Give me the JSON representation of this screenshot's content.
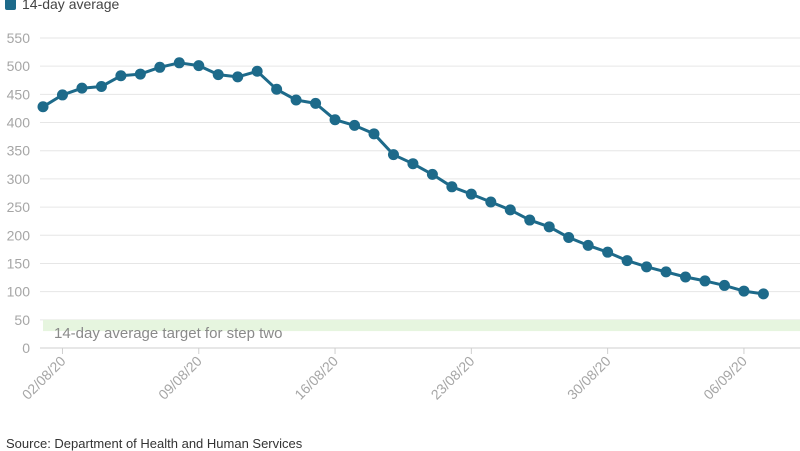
{
  "chart_data": {
    "type": "line",
    "legend": {
      "label": "14-day average",
      "placement": "top-left"
    },
    "colors": {
      "series": "#1d6a8a",
      "band": "#e6f5df",
      "grid": "#e6e6e6",
      "tick": "#a6a6a6"
    },
    "ylim": [
      0,
      550
    ],
    "yticks": [
      0,
      50,
      100,
      150,
      200,
      250,
      300,
      350,
      400,
      450,
      500,
      550
    ],
    "xticks": [
      "02/08/20",
      "09/08/20",
      "16/08/20",
      "23/08/20",
      "30/08/20",
      "06/09/20"
    ],
    "grid": true,
    "target_band": {
      "from": 30,
      "to": 50,
      "label": "14-day average target for step two"
    },
    "series": [
      {
        "name": "14-day average",
        "x": [
          "01/08/20",
          "02/08/20",
          "03/08/20",
          "04/08/20",
          "05/08/20",
          "06/08/20",
          "07/08/20",
          "08/08/20",
          "09/08/20",
          "10/08/20",
          "11/08/20",
          "12/08/20",
          "13/08/20",
          "14/08/20",
          "15/08/20",
          "16/08/20",
          "17/08/20",
          "18/08/20",
          "19/08/20",
          "20/08/20",
          "21/08/20",
          "22/08/20",
          "23/08/20",
          "24/08/20",
          "25/08/20",
          "26/08/20",
          "27/08/20",
          "28/08/20",
          "29/08/20",
          "30/08/20",
          "31/08/20",
          "01/09/20",
          "02/09/20",
          "03/09/20",
          "04/09/20",
          "05/09/20",
          "06/09/20",
          "07/09/20"
        ],
        "values": [
          428,
          449,
          461,
          464,
          483,
          486,
          498,
          506,
          501,
          485,
          481,
          491,
          459,
          440,
          434,
          405,
          395,
          380,
          343,
          327,
          308,
          286,
          273,
          259,
          245,
          227,
          215,
          196,
          182,
          170,
          155,
          144,
          135,
          126,
          119,
          111,
          101,
          96
        ]
      }
    ]
  },
  "source": "Source: Department of Health and Human Services"
}
